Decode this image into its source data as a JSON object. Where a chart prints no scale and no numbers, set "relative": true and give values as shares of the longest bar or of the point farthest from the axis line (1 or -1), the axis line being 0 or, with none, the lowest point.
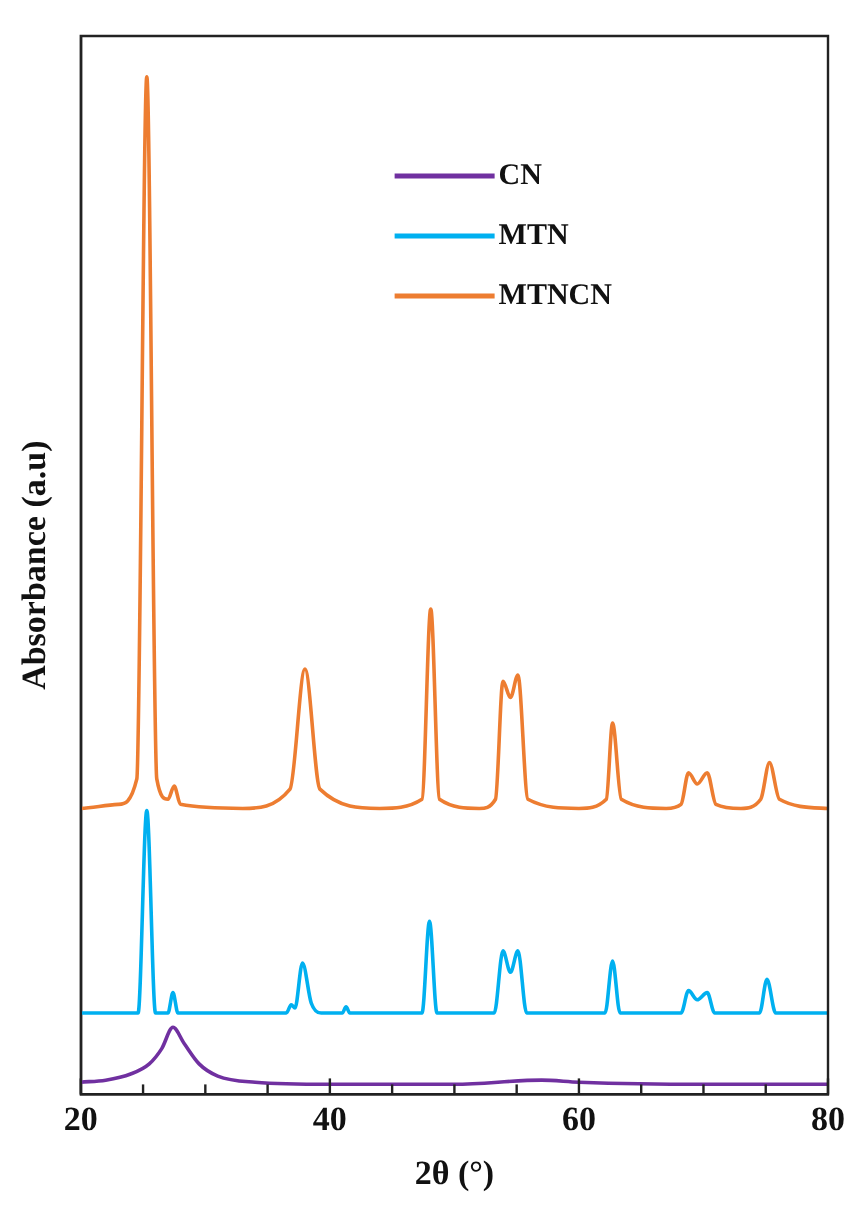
{
  "chart_data": {
    "type": "line",
    "xlabel": "2θ (°)",
    "ylabel": "Absorbance (a.u)",
    "relative": true,
    "legend": "top",
    "grid": false,
    "marker": "none",
    "line_style": "solid",
    "tick_labels": "x",
    "xlim": [
      20,
      80
    ],
    "xticks": [
      20,
      {
        "value": 25,
        "label": null
      },
      {
        "value": 30,
        "label": null
      },
      {
        "value": 35,
        "label": null
      },
      40,
      {
        "value": 45,
        "label": null
      },
      {
        "value": 50,
        "label": null
      },
      {
        "value": 55,
        "label": null
      },
      60,
      {
        "value": 65,
        "label": null
      },
      {
        "value": 70,
        "label": null
      },
      {
        "value": 75,
        "label": null
      },
      80
    ],
    "series": [
      {
        "name": "CN",
        "color": "#7030a0",
        "x": [
          20,
          22,
          24,
          25.5,
          26.5,
          27.4,
          28.3,
          29.5,
          31,
          34,
          40,
          50,
          57,
          60,
          70,
          80
        ],
        "values": [
          0.012,
          0.014,
          0.02,
          0.03,
          0.045,
          0.066,
          0.05,
          0.03,
          0.018,
          0.012,
          0.01,
          0.01,
          0.014,
          0.012,
          0.01,
          0.01
        ]
      },
      {
        "name": "MTN",
        "color": "#00b0f0",
        "x": [
          20,
          24.6,
          25.3,
          26,
          27,
          27.4,
          27.8,
          36.5,
          36.9,
          37.2,
          37.8,
          38.5,
          39.3,
          41,
          41.3,
          41.6,
          47.4,
          48,
          48.6,
          53.2,
          53.9,
          54.5,
          55.1,
          55.8,
          62.1,
          62.7,
          63.3,
          68.2,
          68.8,
          69.5,
          70.3,
          70.9,
          74.5,
          75.1,
          75.8,
          80
        ],
        "values": [
          0.08,
          0.08,
          0.279,
          0.08,
          0.08,
          0.1,
          0.08,
          0.08,
          0.088,
          0.085,
          0.129,
          0.09,
          0.08,
          0.08,
          0.086,
          0.08,
          0.08,
          0.17,
          0.08,
          0.08,
          0.141,
          0.12,
          0.141,
          0.08,
          0.08,
          0.131,
          0.08,
          0.08,
          0.102,
          0.093,
          0.1,
          0.08,
          0.08,
          0.113,
          0.08,
          0.08
        ]
      },
      {
        "name": "MTNCN",
        "color": "#ed7d31",
        "x": [
          20,
          23,
          24.5,
          25.3,
          26.1,
          27,
          27.5,
          28,
          33,
          36.8,
          38,
          39.2,
          44,
          47.4,
          48.1,
          48.8,
          52,
          53.3,
          53.9,
          54.5,
          55.1,
          55.9,
          60,
          62.2,
          62.7,
          63.4,
          67,
          68.2,
          68.8,
          69.5,
          70.3,
          71,
          73,
          74.6,
          75.3,
          76.1,
          80
        ],
        "values": [
          0.281,
          0.285,
          0.31,
          1,
          0.31,
          0.29,
          0.303,
          0.285,
          0.281,
          0.3,
          0.418,
          0.3,
          0.281,
          0.29,
          0.477,
          0.29,
          0.281,
          0.29,
          0.406,
          0.39,
          0.412,
          0.29,
          0.281,
          0.29,
          0.365,
          0.29,
          0.281,
          0.285,
          0.316,
          0.305,
          0.316,
          0.285,
          0.281,
          0.29,
          0.326,
          0.29,
          0.281
        ]
      }
    ]
  }
}
